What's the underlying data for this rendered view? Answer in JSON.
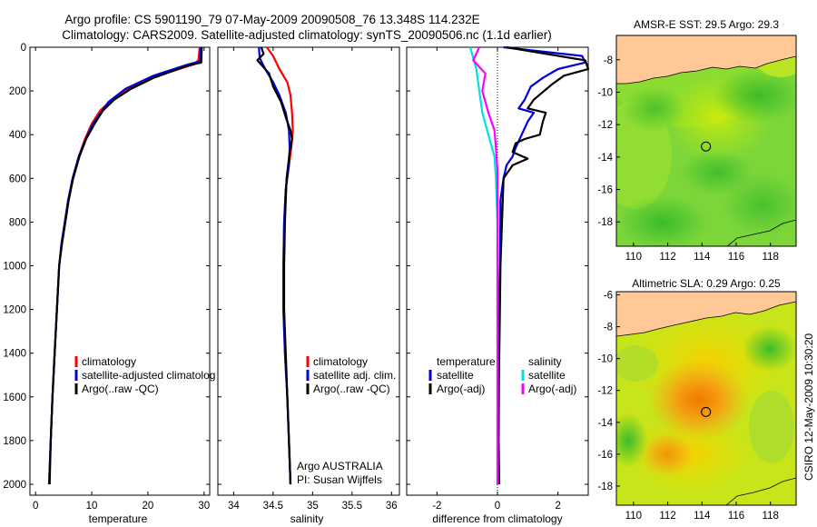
{
  "figure": {
    "title_line1": "Argo profile: CS 5901190_79 07-May-2009 20090508_76 13.348S 114.232E",
    "title_line2": "Climatology: CARS2009. Satellite-adjusted climatology: synTS_20090506.nc (1.1d earlier)",
    "stamp": "CSIRO 12-May-2009 10:30:20",
    "attribution_line1": "Argo AUSTRALIA",
    "attribution_line2": "PI: Susan Wijffels"
  },
  "colors": {
    "climatology": "#ff0000",
    "satellite": "#0000dd",
    "argo": "#000000",
    "cyan": "#00e0e0",
    "magenta": "#ff00ff",
    "land": "#ffc896",
    "coast": "#000000"
  },
  "chart_data": [
    {
      "id": "temperature",
      "type": "line",
      "xlabel": "temperature",
      "xlim": [
        -1,
        31
      ],
      "ylim": [
        2050,
        0
      ],
      "x_ticks": [
        0,
        10,
        20,
        30
      ],
      "y_ticks": [
        0,
        200,
        400,
        600,
        800,
        1000,
        1200,
        1400,
        1600,
        1800,
        2000
      ],
      "legend": [
        "climatology",
        "satellite-adjusted climatolog",
        "Argo(..raw -QC)"
      ],
      "series": [
        {
          "name": "climatology",
          "color": "climatology",
          "points": [
            [
              29.2,
              0
            ],
            [
              29.0,
              60
            ],
            [
              28.0,
              80
            ],
            [
              23,
              120
            ],
            [
              18,
              170
            ],
            [
              14,
              230
            ],
            [
              11.5,
              290
            ],
            [
              10,
              350
            ],
            [
              8.8,
              420
            ],
            [
              7.7,
              500
            ],
            [
              6.6,
              600
            ],
            [
              5.8,
              700
            ],
            [
              5.2,
              800
            ],
            [
              4.6,
              900
            ],
            [
              4.2,
              1000
            ],
            [
              3.8,
              1200
            ],
            [
              3.4,
              1400
            ],
            [
              3.0,
              1600
            ],
            [
              2.7,
              1800
            ],
            [
              2.4,
              2000
            ]
          ]
        },
        {
          "name": "satellite-adjusted climatolog",
          "color": "satellite",
          "points": [
            [
              29.4,
              0
            ],
            [
              29.3,
              65
            ],
            [
              27,
              80
            ],
            [
              21,
              130
            ],
            [
              16,
              190
            ],
            [
              13,
              250
            ],
            [
              11.3,
              310
            ],
            [
              10,
              360
            ],
            [
              8.8,
              430
            ],
            [
              7.7,
              500
            ],
            [
              6.6,
              600
            ],
            [
              5.8,
              700
            ],
            [
              5.2,
              800
            ],
            [
              4.6,
              900
            ],
            [
              4.2,
              1000
            ],
            [
              3.8,
              1200
            ],
            [
              3.4,
              1400
            ],
            [
              3.0,
              1600
            ],
            [
              2.7,
              1800
            ],
            [
              2.4,
              2000
            ]
          ]
        },
        {
          "name": "Argo(..raw -QC)",
          "color": "argo",
          "points": [
            [
              29.6,
              0
            ],
            [
              29.5,
              70
            ],
            [
              27,
              85
            ],
            [
              21,
              140
            ],
            [
              17,
              190
            ],
            [
              14,
              240
            ],
            [
              12,
              290
            ],
            [
              10.5,
              350
            ],
            [
              9,
              420
            ],
            [
              7.8,
              500
            ],
            [
              6.7,
              600
            ],
            [
              5.9,
              700
            ],
            [
              5.3,
              800
            ],
            [
              4.7,
              900
            ],
            [
              4.2,
              1000
            ],
            [
              3.8,
              1200
            ],
            [
              3.4,
              1400
            ],
            [
              3.0,
              1600
            ],
            [
              2.7,
              1800
            ],
            [
              2.5,
              2000
            ]
          ]
        }
      ]
    },
    {
      "id": "salinity",
      "type": "line",
      "xlabel": "salinity",
      "xlim": [
        33.8,
        36.1
      ],
      "ylim": [
        2050,
        0
      ],
      "x_ticks": [
        34,
        34.5,
        35,
        35.5,
        36
      ],
      "y_ticks": [
        0,
        200,
        400,
        600,
        800,
        1000,
        1200,
        1400,
        1600,
        1800,
        2000
      ],
      "legend": [
        "climatology",
        "satellite adj. clim.",
        "Argo(..raw -QC)"
      ],
      "series": [
        {
          "name": "climatology",
          "color": "climatology",
          "points": [
            [
              34.42,
              0
            ],
            [
              34.5,
              40
            ],
            [
              34.58,
              100
            ],
            [
              34.68,
              160
            ],
            [
              34.72,
              220
            ],
            [
              34.74,
              300
            ],
            [
              34.75,
              380
            ],
            [
              34.73,
              460
            ],
            [
              34.7,
              540
            ],
            [
              34.66,
              650
            ],
            [
              34.64,
              800
            ],
            [
              34.63,
              1000
            ],
            [
              34.63,
              1200
            ],
            [
              34.65,
              1400
            ],
            [
              34.68,
              1600
            ],
            [
              34.7,
              1800
            ],
            [
              34.72,
              2000
            ]
          ]
        },
        {
          "name": "satellite adj. clim.",
          "color": "satellite",
          "points": [
            [
              34.32,
              0
            ],
            [
              34.33,
              50
            ],
            [
              34.4,
              100
            ],
            [
              34.5,
              160
            ],
            [
              34.58,
              220
            ],
            [
              34.66,
              300
            ],
            [
              34.7,
              380
            ],
            [
              34.71,
              460
            ],
            [
              34.7,
              540
            ],
            [
              34.66,
              650
            ],
            [
              34.64,
              800
            ],
            [
              34.63,
              1000
            ],
            [
              34.63,
              1200
            ],
            [
              34.65,
              1400
            ],
            [
              34.68,
              1600
            ],
            [
              34.7,
              1800
            ],
            [
              34.72,
              2000
            ]
          ]
        },
        {
          "name": "Argo(..raw -QC)",
          "color": "argo",
          "points": [
            [
              34.35,
              0
            ],
            [
              34.38,
              30
            ],
            [
              34.3,
              60
            ],
            [
              34.45,
              120
            ],
            [
              34.5,
              180
            ],
            [
              34.6,
              250
            ],
            [
              34.66,
              320
            ],
            [
              34.72,
              380
            ],
            [
              34.74,
              420
            ],
            [
              34.71,
              480
            ],
            [
              34.69,
              540
            ],
            [
              34.67,
              600
            ],
            [
              34.65,
              800
            ],
            [
              34.64,
              1000
            ],
            [
              34.64,
              1200
            ],
            [
              34.66,
              1400
            ],
            [
              34.68,
              1600
            ],
            [
              34.7,
              1800
            ],
            [
              34.72,
              2000
            ]
          ]
        }
      ]
    },
    {
      "id": "difference",
      "type": "line",
      "xlabel": "difference from climatology",
      "xlim": [
        -3,
        3
      ],
      "ylim": [
        2050,
        0
      ],
      "x_ticks": [
        -2,
        0,
        2
      ],
      "y_ticks": [
        0,
        200,
        400,
        600,
        800,
        1000,
        1200,
        1400,
        1600,
        1800,
        2000
      ],
      "legend_left_header": "temperature",
      "legend_left": [
        "satellite",
        "Argo(-adj)"
      ],
      "legend_right_header": "salinity",
      "legend_right": [
        "satellite",
        "Argo(-adj)"
      ],
      "series": [
        {
          "name": "temperature satellite",
          "color": "satellite",
          "points": [
            [
              0.2,
              0
            ],
            [
              2.8,
              40
            ],
            [
              2.9,
              70
            ],
            [
              2.0,
              100
            ],
            [
              1.5,
              140
            ],
            [
              1.1,
              180
            ],
            [
              0.9,
              240
            ],
            [
              0.7,
              280
            ],
            [
              1.2,
              300
            ],
            [
              1.0,
              340
            ],
            [
              0.8,
              400
            ],
            [
              0.6,
              460
            ],
            [
              0.5,
              500
            ],
            [
              0.3,
              540
            ],
            [
              0.2,
              600
            ],
            [
              0.1,
              700
            ],
            [
              0.1,
              800
            ],
            [
              0.08,
              1000
            ],
            [
              0.05,
              1200
            ],
            [
              0.04,
              1500
            ],
            [
              0.03,
              1800
            ],
            [
              0.05,
              2000
            ]
          ]
        },
        {
          "name": "temperature Argo(-adj)",
          "color": "argo",
          "points": [
            [
              0.3,
              0
            ],
            [
              2.9,
              60
            ],
            [
              3.0,
              100
            ],
            [
              2.2,
              130
            ],
            [
              1.8,
              170
            ],
            [
              1.2,
              240
            ],
            [
              1.0,
              280
            ],
            [
              1.6,
              300
            ],
            [
              1.5,
              340
            ],
            [
              1.4,
              400
            ],
            [
              0.9,
              420
            ],
            [
              0.6,
              440
            ],
            [
              0.5,
              480
            ],
            [
              1.0,
              510
            ],
            [
              0.5,
              540
            ],
            [
              0.2,
              600
            ],
            [
              0.15,
              800
            ],
            [
              0.1,
              1000
            ],
            [
              0.08,
              1200
            ],
            [
              0.05,
              1500
            ],
            [
              0.04,
              1800
            ],
            [
              0.06,
              2000
            ]
          ]
        },
        {
          "name": "salinity satellite",
          "color": "cyan",
          "points": [
            [
              -0.9,
              0
            ],
            [
              -0.7,
              100
            ],
            [
              -0.6,
              200
            ],
            [
              -0.5,
              300
            ],
            [
              -0.3,
              400
            ],
            [
              -0.1,
              500
            ],
            [
              -0.05,
              600
            ],
            [
              0,
              800
            ],
            [
              0,
              1200
            ],
            [
              0,
              1600
            ],
            [
              0,
              2000
            ]
          ]
        },
        {
          "name": "salinity Argo(-adj)",
          "color": "magenta",
          "points": [
            [
              -0.6,
              0
            ],
            [
              -0.8,
              60
            ],
            [
              -0.4,
              120
            ],
            [
              -0.5,
              200
            ],
            [
              -0.3,
              300
            ],
            [
              -0.1,
              380
            ],
            [
              -0.05,
              460
            ],
            [
              0,
              560
            ],
            [
              0,
              800
            ],
            [
              0,
              1200
            ],
            [
              0,
              1600
            ],
            [
              0,
              2000
            ]
          ]
        }
      ]
    },
    {
      "id": "sst_map",
      "type": "heatmap",
      "title": "AMSR-E SST: 29.5 Argo: 29.3",
      "lon_ticks": [
        110,
        112,
        114,
        116,
        118
      ],
      "lat_ticks": [
        -8,
        -10,
        -12,
        -14,
        -16,
        -18
      ],
      "lon_range": [
        109,
        119.5
      ],
      "lat_range": [
        -19.5,
        -6.5
      ],
      "profile_location": {
        "lon": 114.232,
        "lat": -13.348
      }
    },
    {
      "id": "sla_map",
      "type": "heatmap",
      "title": "Altimetric SLA: 0.29 Argo: 0.25",
      "lon_ticks": [
        110,
        112,
        114,
        116,
        118
      ],
      "lat_ticks": [
        -6,
        -8,
        -10,
        -12,
        -14,
        -16,
        -18
      ],
      "lon_range": [
        109,
        119.5
      ],
      "lat_range": [
        -19.2,
        -5.8
      ],
      "profile_location": {
        "lon": 114.232,
        "lat": -13.348
      }
    }
  ]
}
